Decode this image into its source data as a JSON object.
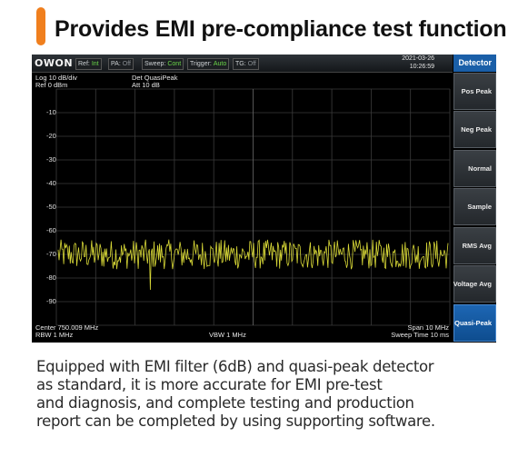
{
  "headline": "Provides EMI pre-compliance test function",
  "device": {
    "logo": "OWON",
    "status": [
      {
        "label": "Ref:",
        "value": "Int",
        "state": "on"
      },
      {
        "label": "PA:",
        "value": "Off",
        "state": "off"
      },
      {
        "label": "Sweep:",
        "value": "Cont",
        "state": "on"
      },
      {
        "label": "Trigger:",
        "value": "Auto",
        "state": "on"
      },
      {
        "label": "TG:",
        "value": "Off",
        "state": "off"
      }
    ],
    "date": "2021-03-26",
    "time": "10:26:59",
    "menu_title": "Detector",
    "softkeys": [
      "Pos Peak",
      "Neg Peak",
      "Normal",
      "Sample",
      "RMS Avg",
      "Voltage Avg",
      "Quasi-Peak"
    ],
    "active_softkey": "Quasi-Peak",
    "scale": "Log 10 dB/div",
    "ref": "Ref 0 dBm",
    "detector_info": "Det QuasiPeak",
    "atten_info": "Att 10 dB",
    "center": "Center 750.009 MHz",
    "rbw": "RBW 1 MHz",
    "vbw": "VBW 1 MHz",
    "span": "Span 10 MHz",
    "sweep_time": "Sweep Time 10 ms",
    "y_ticks": [
      "-10",
      "-20",
      "-30",
      "-40",
      "-50",
      "-60",
      "-70",
      "-80",
      "-90"
    ]
  },
  "chart_data": {
    "type": "line",
    "y_range_dbm": [
      -100,
      0
    ],
    "center_mhz": 750.009,
    "span_mhz": 10,
    "noise_floor_dbm": -70,
    "noise_band_dbm": [
      -78,
      -64
    ],
    "spike_dbm": -85,
    "trace_color": "#d9d937",
    "grid": true
  },
  "caption": [
    "Equipped with EMI filter (6dB) and quasi-peak detector",
    "as standard, it is more accurate for EMI pre-test",
    "and diagnosis, and complete testing and production",
    "report can be completed by using supporting software."
  ]
}
